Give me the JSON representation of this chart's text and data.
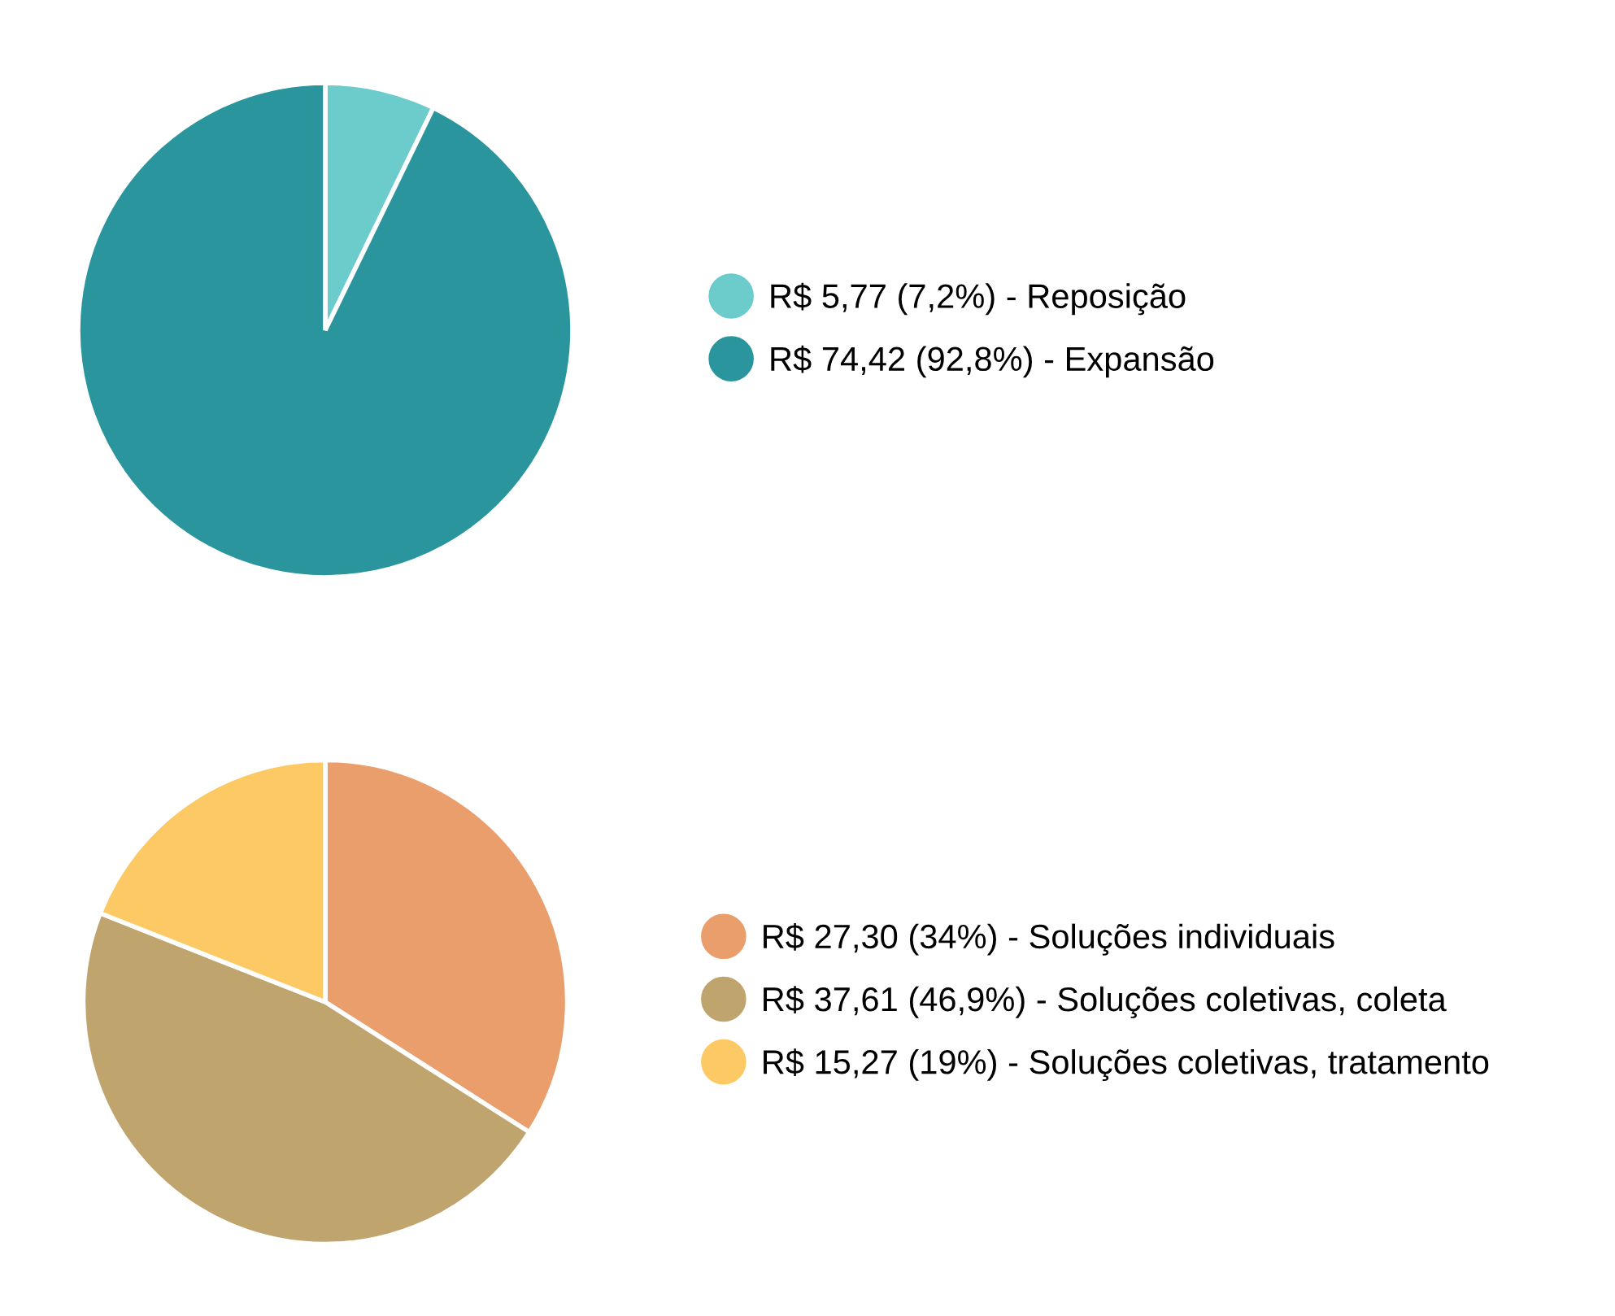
{
  "chart_data": [
    {
      "type": "pie",
      "categories": [
        "R$ 5,77 (7,2%) - Reposição",
        "R$ 74,42 (92,8%) - Expansão"
      ],
      "values": [
        7.2,
        92.8
      ],
      "colors": [
        "#6ccbcb",
        "#2b959e"
      ],
      "legend": "right"
    },
    {
      "type": "pie",
      "categories": [
        "R$ 27,30 (34%) - Soluções individuais",
        "R$ 37,61 (46,9%) - Soluções coletivas, coleta",
        "R$ 15,27 (19%) - Soluções coletivas, tratamento"
      ],
      "values": [
        34,
        46.9,
        19
      ],
      "colors": [
        "#e99e6c",
        "#c0a46e",
        "#fdc964"
      ],
      "legend": "right"
    }
  ]
}
